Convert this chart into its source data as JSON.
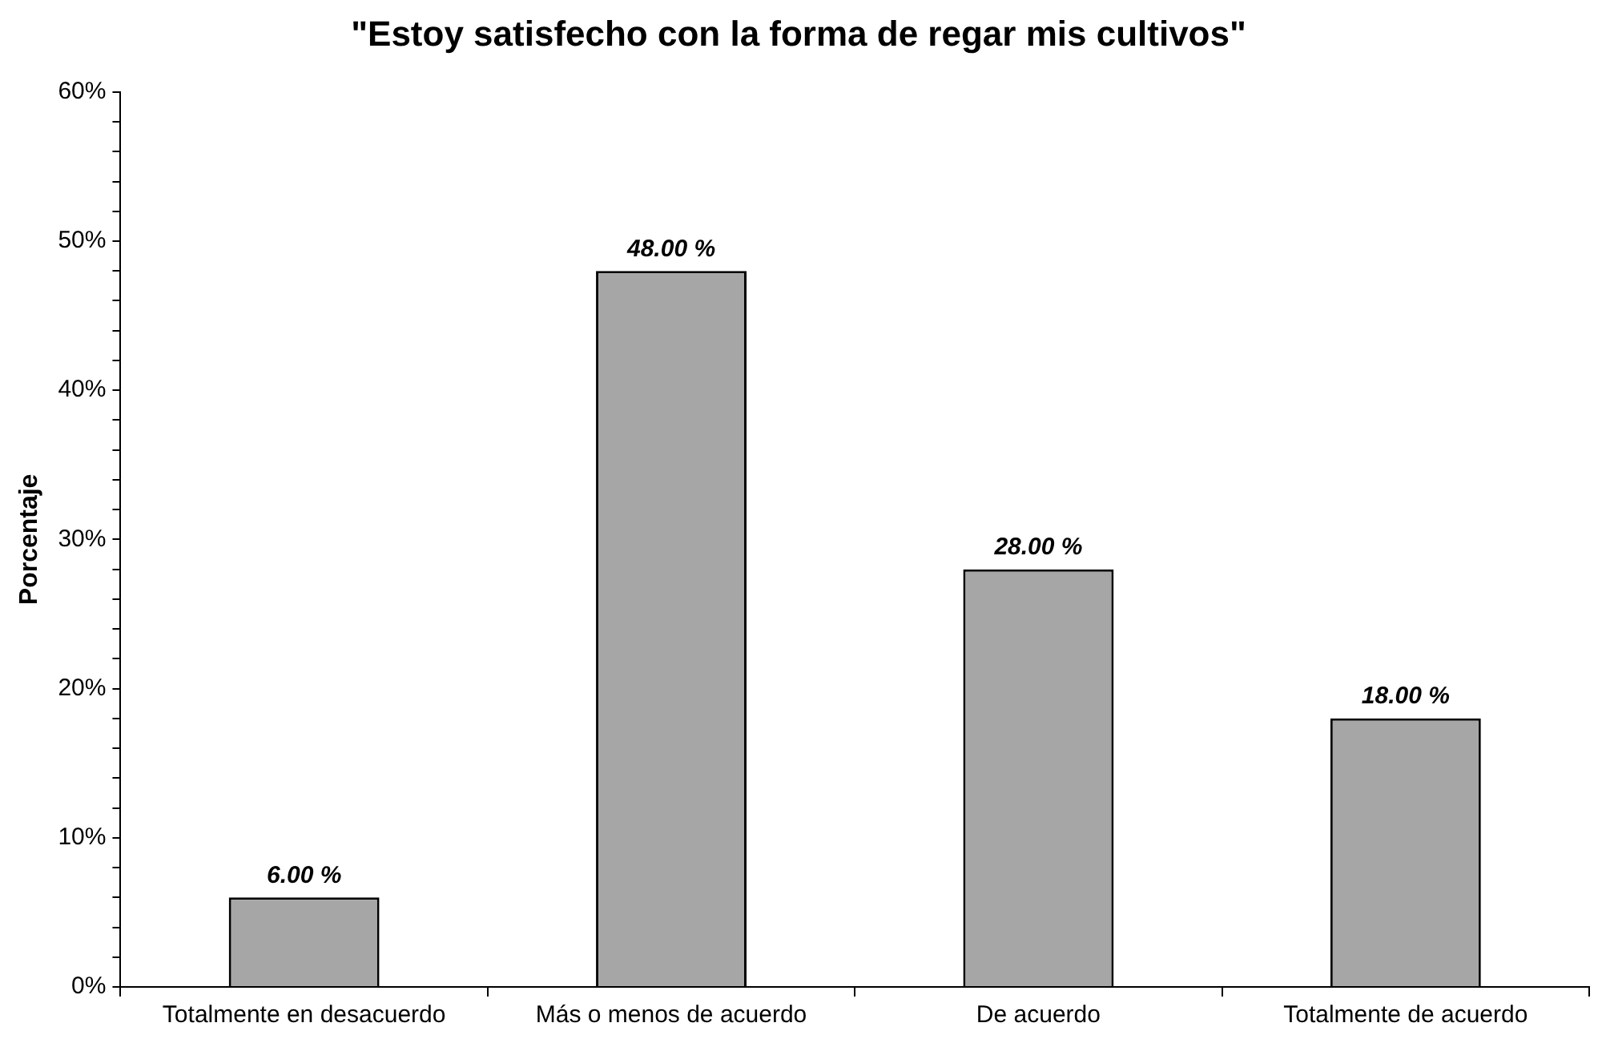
{
  "chart_data": {
    "type": "bar",
    "title": "\"Estoy satisfecho con la forma de regar mis cultivos\"",
    "ylabel": "Porcentaje",
    "categories": [
      "Totalmente en desacuerdo",
      "Más o menos de acuerdo",
      "De acuerdo",
      "Totalmente de acuerdo"
    ],
    "values": [
      6,
      48,
      28,
      18
    ],
    "color": "#a6a6a6",
    "value_labels": [
      "6.00 %",
      "48.00 %",
      "28.00 %",
      "18.00 %"
    ],
    "ylim": [
      0,
      60
    ],
    "yticks": [
      {
        "value": 0,
        "label": "0%"
      },
      {
        "value": 2,
        "label": null
      },
      {
        "value": 4,
        "label": null
      },
      {
        "value": 6,
        "label": null
      },
      {
        "value": 8,
        "label": null
      },
      {
        "value": 10,
        "label": "10%"
      },
      {
        "value": 12,
        "label": null
      },
      {
        "value": 14,
        "label": null
      },
      {
        "value": 16,
        "label": null
      },
      {
        "value": 18,
        "label": null
      },
      {
        "value": 20,
        "label": "20%"
      },
      {
        "value": 22,
        "label": null
      },
      {
        "value": 24,
        "label": null
      },
      {
        "value": 26,
        "label": null
      },
      {
        "value": 28,
        "label": null
      },
      {
        "value": 30,
        "label": "30%"
      },
      {
        "value": 32,
        "label": null
      },
      {
        "value": 34,
        "label": null
      },
      {
        "value": 36,
        "label": null
      },
      {
        "value": 38,
        "label": null
      },
      {
        "value": 40,
        "label": "40%"
      },
      {
        "value": 42,
        "label": null
      },
      {
        "value": 44,
        "label": null
      },
      {
        "value": 46,
        "label": null
      },
      {
        "value": 48,
        "label": null
      },
      {
        "value": 50,
        "label": "50%"
      },
      {
        "value": 52,
        "label": null
      },
      {
        "value": 54,
        "label": null
      },
      {
        "value": 56,
        "label": null
      },
      {
        "value": 58,
        "label": null
      },
      {
        "value": 60,
        "label": "60%"
      }
    ],
    "grid": false,
    "legend": false
  }
}
